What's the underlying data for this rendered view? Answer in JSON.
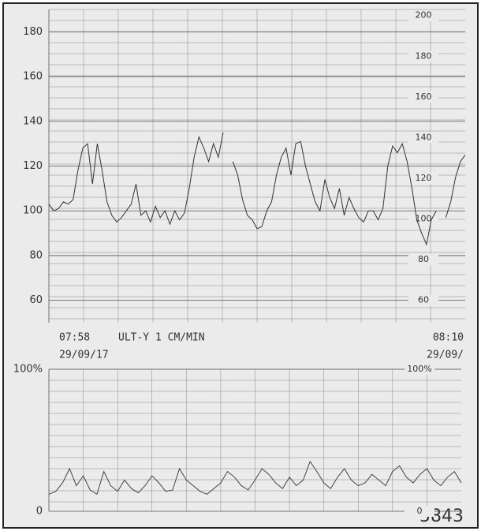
{
  "chart_data": [
    {
      "type": "line",
      "start_time": "07:58",
      "start_date": "29/09/17",
      "mode": "ULT-Y 1 CM/MIN",
      "end_time": "08:10",
      "end_date": "29/09/",
      "ylim": [
        50,
        190
      ],
      "yticks": [
        60,
        80,
        100,
        120,
        140,
        160,
        180
      ],
      "y2lim": [
        49,
        203
      ],
      "y2ticks": [
        60,
        80,
        100,
        120,
        140,
        160,
        180,
        200
      ],
      "grid": true,
      "color": "#333333",
      "values": [
        103,
        100,
        101,
        104,
        103,
        105,
        118,
        128,
        130,
        112,
        130,
        118,
        104,
        98,
        95,
        97,
        100,
        103,
        112,
        98,
        100,
        95,
        102,
        97,
        100,
        94,
        100,
        96,
        99,
        110,
        124,
        133,
        128,
        122,
        130,
        124,
        135,
        null,
        122,
        116,
        105,
        98,
        96,
        92,
        93,
        100,
        104,
        116,
        124,
        128,
        116,
        130,
        131,
        120,
        112,
        104,
        100,
        114,
        106,
        101,
        110,
        98,
        106,
        101,
        97,
        95,
        100,
        100,
        96,
        101,
        120,
        129,
        126,
        130,
        122,
        110,
        96,
        90,
        85,
        96,
        100,
        null,
        97,
        104,
        115,
        122,
        125
      ]
    },
    {
      "type": "line",
      "ylim": [
        0,
        100
      ],
      "yticks": [
        0,
        {
          "value": 100,
          "label": "100%"
        }
      ],
      "y2lim": [
        0,
        100
      ],
      "y2ticks": [
        0,
        {
          "value": 100,
          "label": "100%"
        }
      ],
      "grid": true,
      "color": "#444444",
      "values": [
        12,
        14,
        20,
        30,
        18,
        25,
        15,
        12,
        28,
        18,
        14,
        22,
        16,
        13,
        18,
        25,
        20,
        14,
        15,
        30,
        22,
        18,
        14,
        12,
        16,
        20,
        28,
        24,
        18,
        15,
        22,
        30,
        26,
        20,
        16,
        24,
        18,
        22,
        35,
        28,
        20,
        16,
        24,
        30,
        22,
        18,
        20,
        26,
        22,
        18,
        28,
        32,
        24,
        20,
        26,
        30,
        22,
        18,
        24,
        28,
        20
      ]
    }
  ],
  "id_number": "5843"
}
